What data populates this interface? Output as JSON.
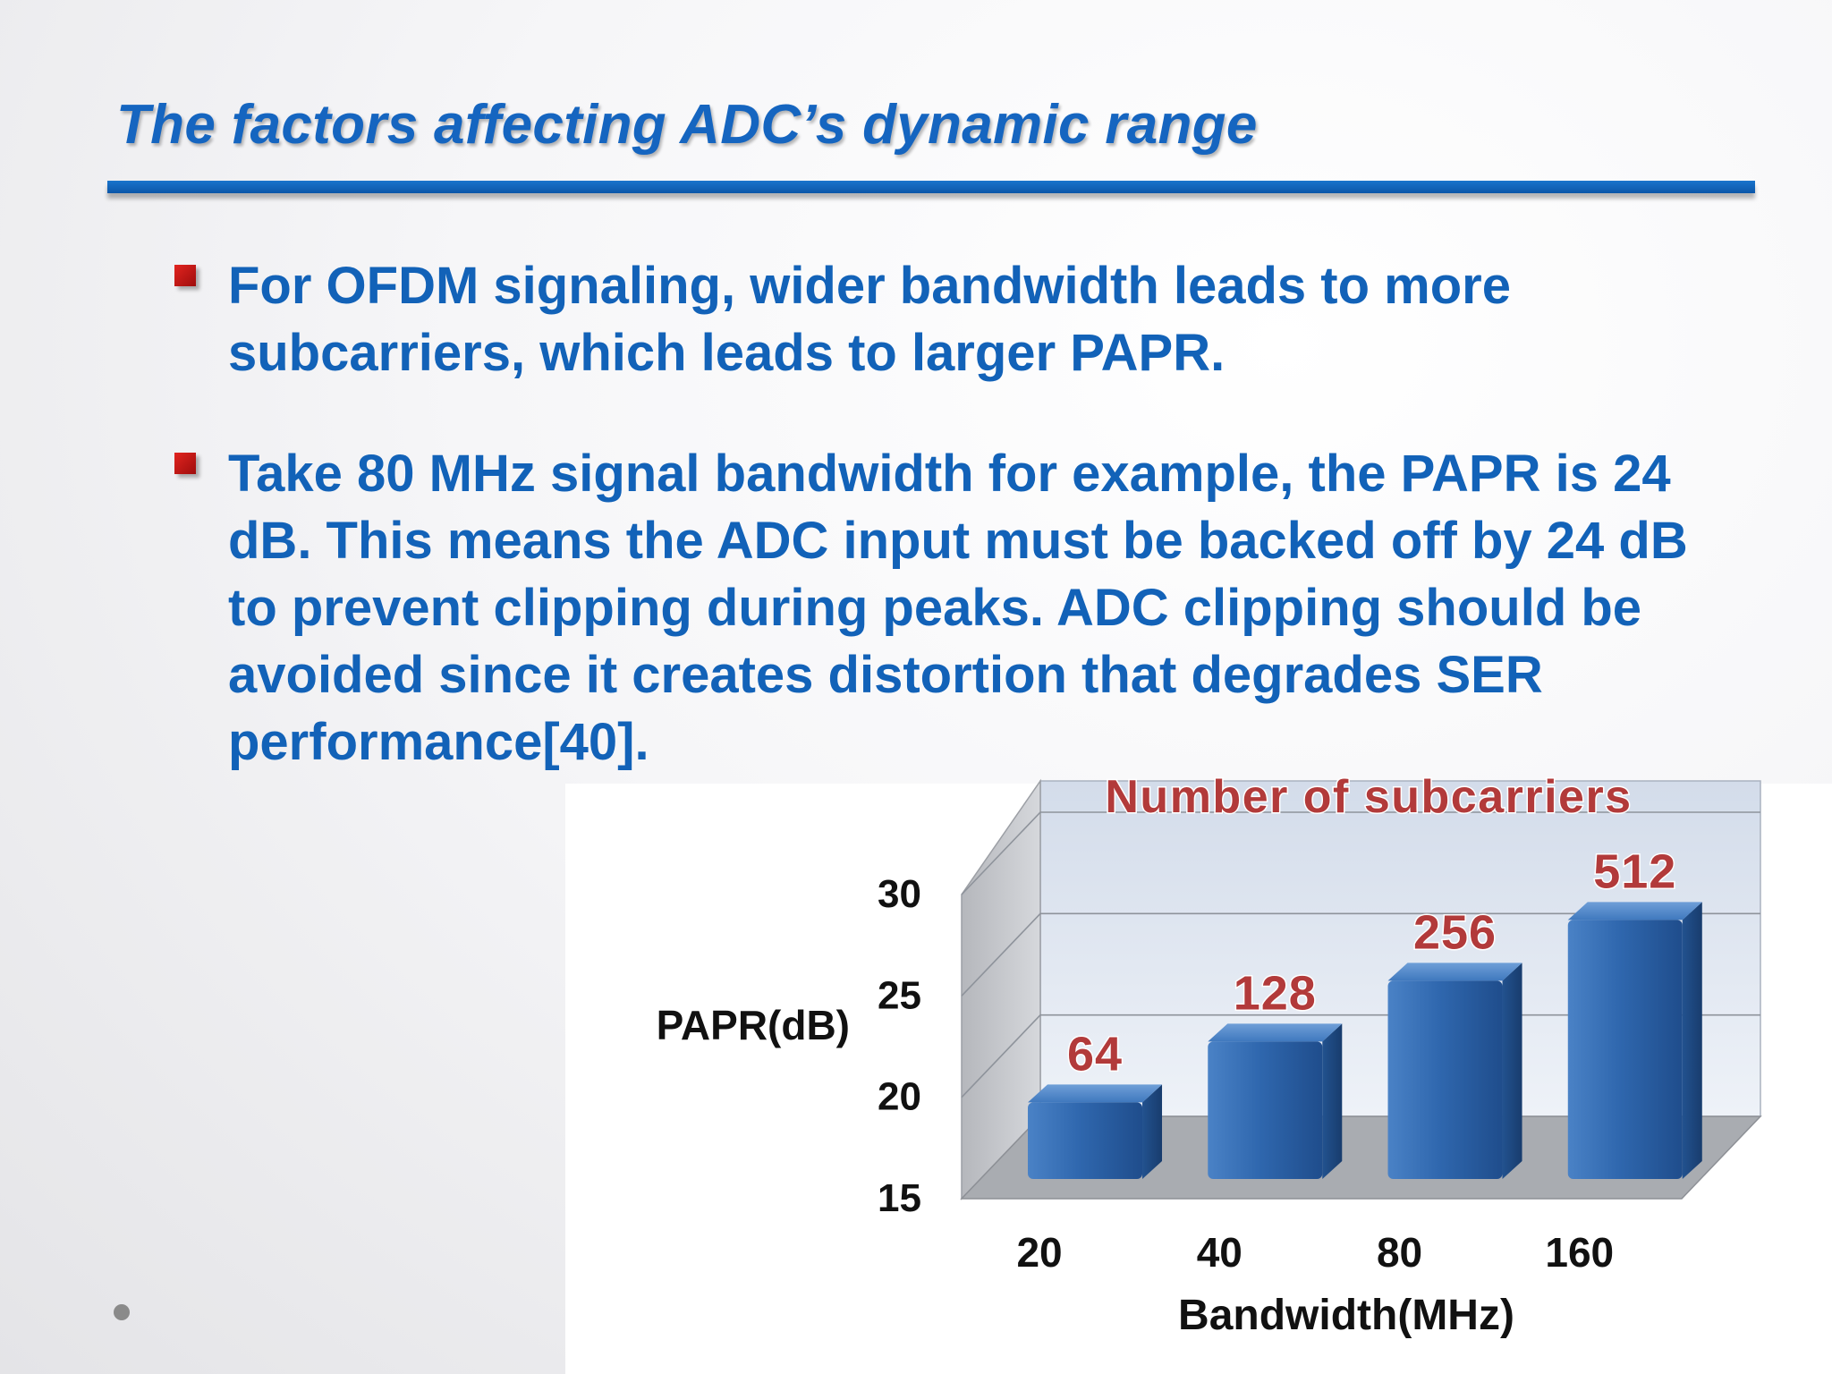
{
  "slide": {
    "title": "The factors affecting ADC’s dynamic range",
    "bullets": [
      "For OFDM signaling, wider bandwidth leads to more subcarriers, which leads to larger PAPR.",
      "Take 80 MHz signal bandwidth for example, the PAPR is 24 dB. This means the ADC input must be backed off by 24 dB to prevent clipping during peaks. ADC clipping should be avoided since it creates distortion that degrades SER performance[40]."
    ]
  },
  "chart_data": {
    "type": "bar",
    "title": "Number of subcarriers",
    "xlabel": "Bandwidth(MHz)",
    "ylabel": "PAPR(dB)",
    "categories": [
      "20",
      "40",
      "80",
      "160"
    ],
    "values": [
      18,
      21,
      24,
      27
    ],
    "data_labels": [
      "64",
      "128",
      "256",
      "512"
    ],
    "ylim": [
      15,
      30
    ],
    "yticks": [
      "15",
      "20",
      "25",
      "30"
    ],
    "grid": true,
    "style": "3d",
    "colors": {
      "bar": "#2e66ad",
      "data_label": "#b23a3a",
      "floor": "#a9acb1",
      "back_wall": "#dfe6f1",
      "side_wall": "#b8babf"
    }
  }
}
